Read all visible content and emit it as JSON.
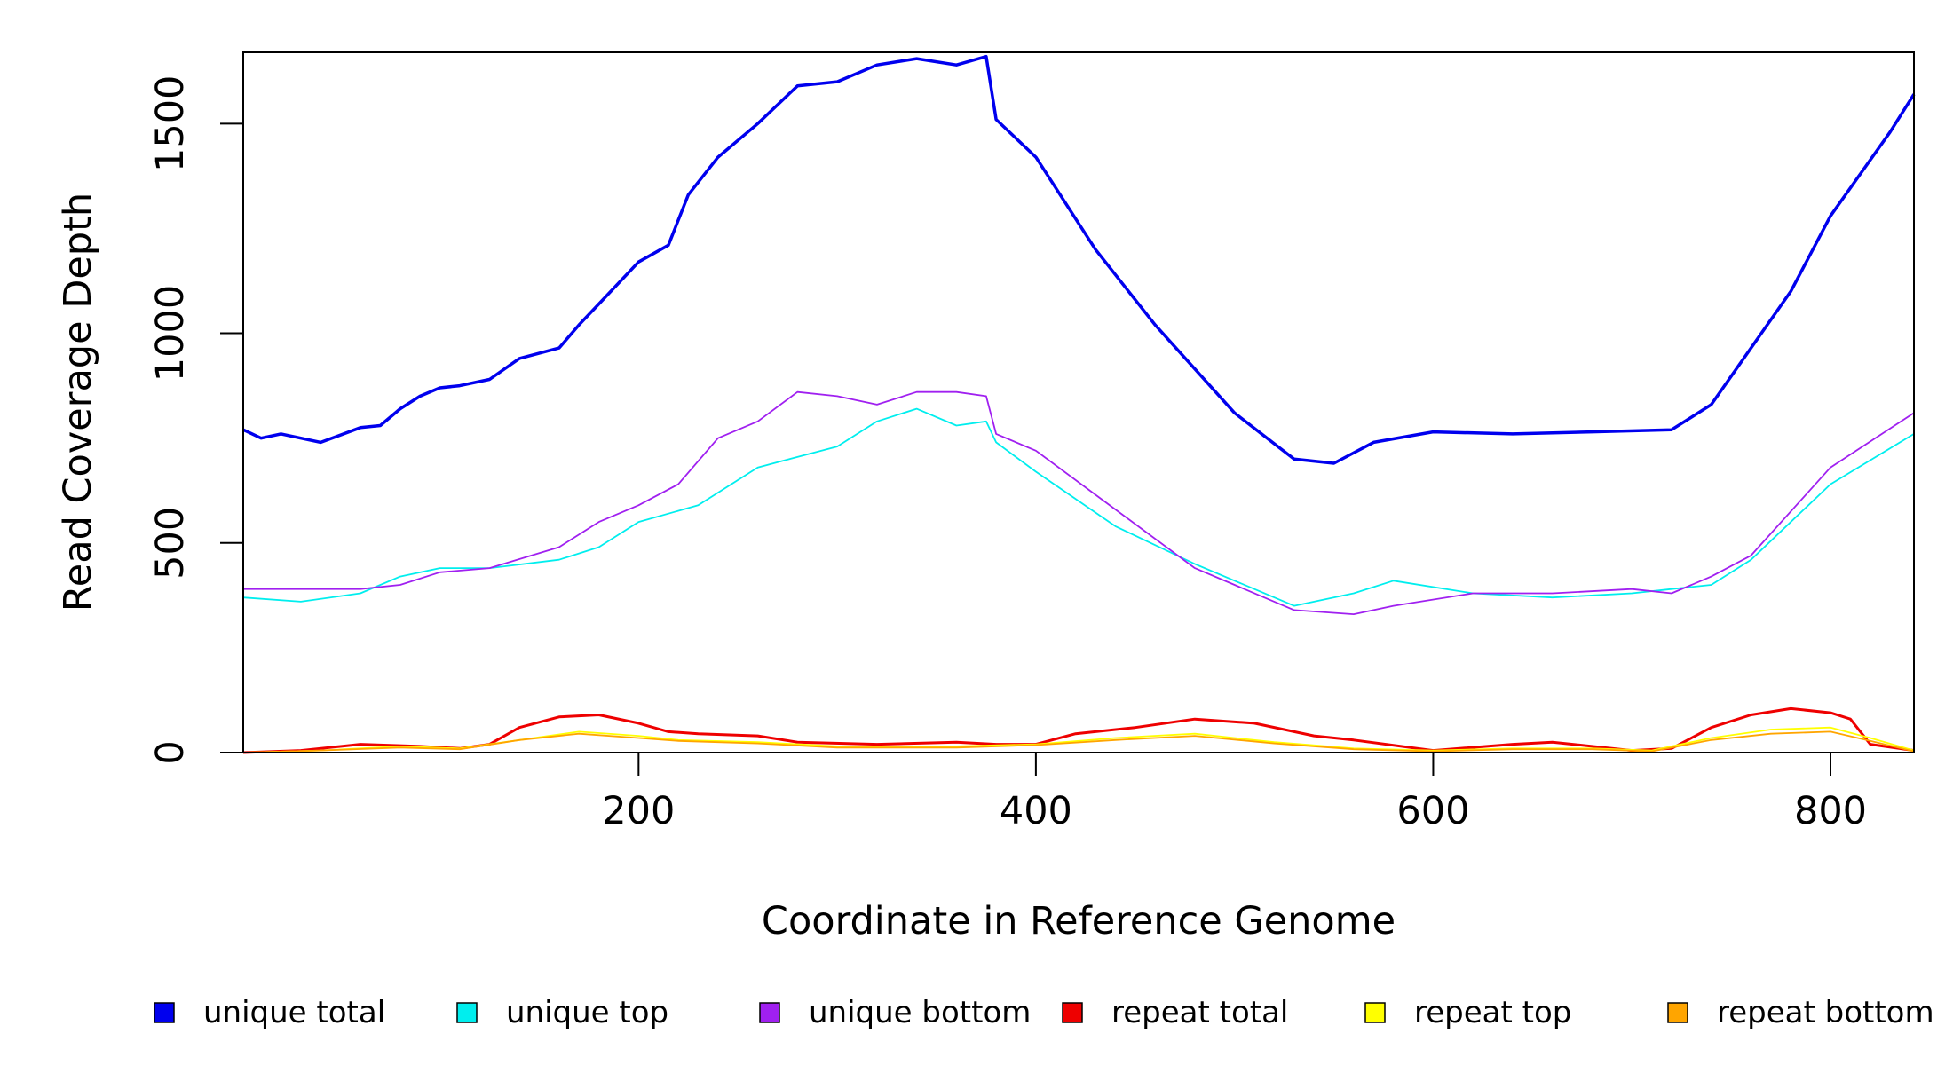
{
  "chart_data": {
    "type": "line",
    "title": "",
    "xlabel": "Coordinate in Reference Genome",
    "ylabel": "Read Coverage Depth",
    "xlim": [
      1,
      842
    ],
    "ylim": [
      0,
      1670
    ],
    "x_ticks": [
      200,
      400,
      600,
      800
    ],
    "y_ticks": [
      0,
      500,
      1000,
      1500
    ],
    "x_tick_labels": [
      "200",
      "400",
      "600",
      "800"
    ],
    "y_tick_labels": [
      "0",
      "500",
      "1000",
      "1500"
    ],
    "grid": false,
    "legend_position": "bottom",
    "series": [
      {
        "name": "unique total",
        "color": "#0000ee",
        "x": [
          1,
          10,
          20,
          40,
          60,
          70,
          80,
          90,
          100,
          110,
          125,
          140,
          160,
          170,
          180,
          200,
          215,
          225,
          240,
          260,
          280,
          300,
          320,
          340,
          360,
          375,
          380,
          400,
          430,
          460,
          500,
          530,
          550,
          570,
          600,
          640,
          680,
          720,
          740,
          780,
          800,
          815,
          830,
          842
        ],
        "values": [
          770,
          750,
          760,
          740,
          775,
          780,
          820,
          850,
          870,
          875,
          890,
          940,
          965,
          1020,
          1070,
          1170,
          1210,
          1330,
          1420,
          1500,
          1590,
          1600,
          1640,
          1655,
          1640,
          1660,
          1510,
          1420,
          1200,
          1020,
          810,
          700,
          690,
          740,
          765,
          760,
          765,
          770,
          830,
          1100,
          1280,
          1380,
          1480,
          1570
        ]
      },
      {
        "name": "unique top",
        "color": "#00eeee",
        "x": [
          1,
          30,
          60,
          80,
          100,
          125,
          160,
          180,
          200,
          230,
          260,
          300,
          320,
          340,
          360,
          375,
          380,
          400,
          440,
          480,
          500,
          530,
          560,
          580,
          620,
          660,
          700,
          720,
          740,
          760,
          800,
          842
        ],
        "values": [
          370,
          360,
          380,
          420,
          440,
          440,
          460,
          490,
          550,
          590,
          680,
          730,
          790,
          820,
          780,
          790,
          740,
          670,
          540,
          450,
          410,
          350,
          380,
          410,
          380,
          370,
          380,
          390,
          400,
          460,
          640,
          760
        ]
      },
      {
        "name": "unique bottom",
        "color": "#a020f0",
        "x": [
          1,
          30,
          60,
          80,
          100,
          125,
          160,
          180,
          200,
          220,
          240,
          260,
          280,
          300,
          320,
          340,
          360,
          375,
          380,
          400,
          440,
          480,
          500,
          530,
          560,
          580,
          620,
          660,
          700,
          720,
          740,
          760,
          800,
          842
        ],
        "values": [
          390,
          390,
          390,
          400,
          430,
          440,
          490,
          550,
          590,
          640,
          750,
          790,
          860,
          850,
          830,
          860,
          860,
          850,
          760,
          720,
          580,
          440,
          400,
          340,
          330,
          350,
          380,
          380,
          390,
          380,
          420,
          470,
          680,
          810
        ]
      },
      {
        "name": "repeat total",
        "color": "#ee0000",
        "x": [
          1,
          30,
          60,
          90,
          110,
          125,
          140,
          160,
          180,
          200,
          215,
          230,
          260,
          280,
          320,
          360,
          380,
          400,
          420,
          450,
          480,
          510,
          540,
          560,
          600,
          640,
          660,
          700,
          720,
          740,
          760,
          780,
          800,
          810,
          820,
          842
        ],
        "values": [
          0,
          5,
          20,
          15,
          10,
          20,
          60,
          85,
          90,
          70,
          50,
          45,
          40,
          25,
          20,
          25,
          20,
          20,
          45,
          60,
          80,
          70,
          40,
          30,
          5,
          20,
          25,
          5,
          10,
          60,
          90,
          105,
          95,
          80,
          20,
          5
        ]
      },
      {
        "name": "repeat top",
        "color": "#ffff00",
        "x": [
          1,
          40,
          80,
          110,
          140,
          170,
          200,
          220,
          260,
          300,
          360,
          400,
          440,
          480,
          520,
          560,
          600,
          640,
          680,
          710,
          740,
          770,
          800,
          820,
          842
        ],
        "values": [
          0,
          5,
          15,
          10,
          30,
          50,
          40,
          30,
          25,
          15,
          15,
          20,
          35,
          45,
          25,
          10,
          5,
          10,
          10,
          5,
          35,
          55,
          60,
          35,
          5
        ]
      },
      {
        "name": "repeat bottom",
        "color": "#ffa500",
        "x": [
          1,
          40,
          80,
          110,
          140,
          170,
          200,
          220,
          260,
          300,
          360,
          400,
          440,
          480,
          520,
          560,
          600,
          640,
          680,
          710,
          740,
          770,
          800,
          820,
          842
        ],
        "values": [
          0,
          5,
          12,
          8,
          30,
          45,
          35,
          28,
          22,
          12,
          12,
          18,
          30,
          40,
          22,
          8,
          3,
          8,
          8,
          3,
          30,
          45,
          50,
          28,
          3
        ]
      }
    ]
  }
}
